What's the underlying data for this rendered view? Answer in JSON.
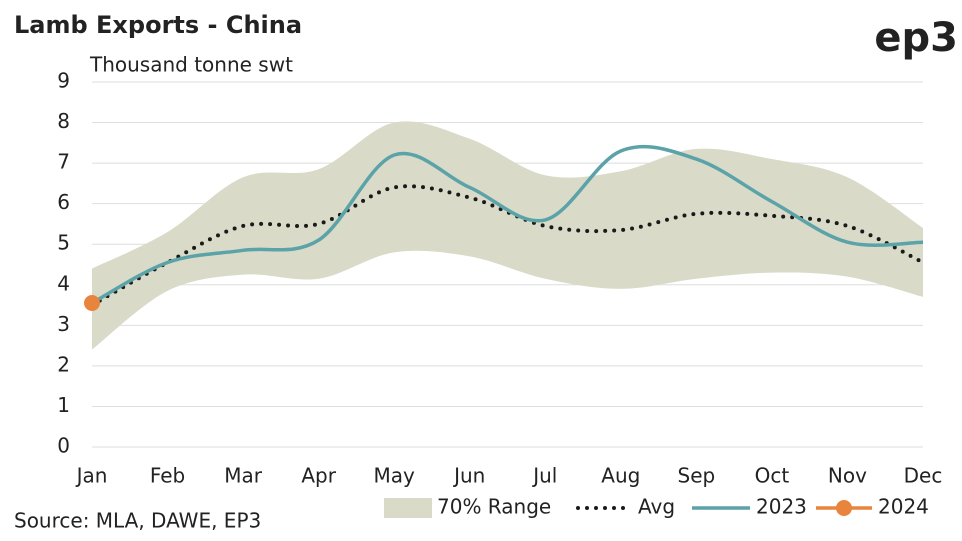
{
  "chart_data": {
    "type": "line",
    "title": "Lamb Exports - China",
    "y_label": "Thousand tonne swt",
    "source": "Source: MLA, DAWE, EP3",
    "logo": "ep3",
    "categories": [
      "Jan",
      "Feb",
      "Mar",
      "Apr",
      "May",
      "Jun",
      "Jul",
      "Aug",
      "Sep",
      "Oct",
      "Nov",
      "Dec"
    ],
    "band": {
      "name": "70% Range",
      "color": "#d9dac8",
      "high": [
        4.4,
        5.3,
        6.65,
        6.85,
        8.0,
        7.6,
        6.7,
        6.8,
        7.35,
        7.1,
        6.65,
        5.4
      ],
      "low": [
        2.4,
        3.85,
        4.25,
        4.15,
        4.8,
        4.7,
        4.15,
        3.9,
        4.15,
        4.3,
        4.2,
        3.7
      ]
    },
    "series": [
      {
        "name": "Avg",
        "color": "#1a1a1a",
        "style": "dotted",
        "values": [
          3.5,
          4.55,
          5.45,
          5.5,
          6.4,
          6.15,
          5.45,
          5.35,
          5.75,
          5.7,
          5.45,
          4.55
        ]
      },
      {
        "name": "2023",
        "color": "#5ba3a8",
        "style": "solid",
        "values": [
          3.55,
          4.55,
          4.85,
          5.1,
          7.2,
          6.4,
          5.6,
          7.3,
          7.1,
          6.05,
          5.05,
          5.05
        ]
      },
      {
        "name": "2024",
        "color": "#e8843c",
        "style": "marker",
        "values": [
          3.55,
          null,
          null,
          null,
          null,
          null,
          null,
          null,
          null,
          null,
          null,
          null
        ]
      }
    ],
    "ylim": [
      0,
      9
    ],
    "yticks": [
      0,
      1,
      2,
      3,
      4,
      5,
      6,
      7,
      8,
      9
    ],
    "grid": true
  }
}
